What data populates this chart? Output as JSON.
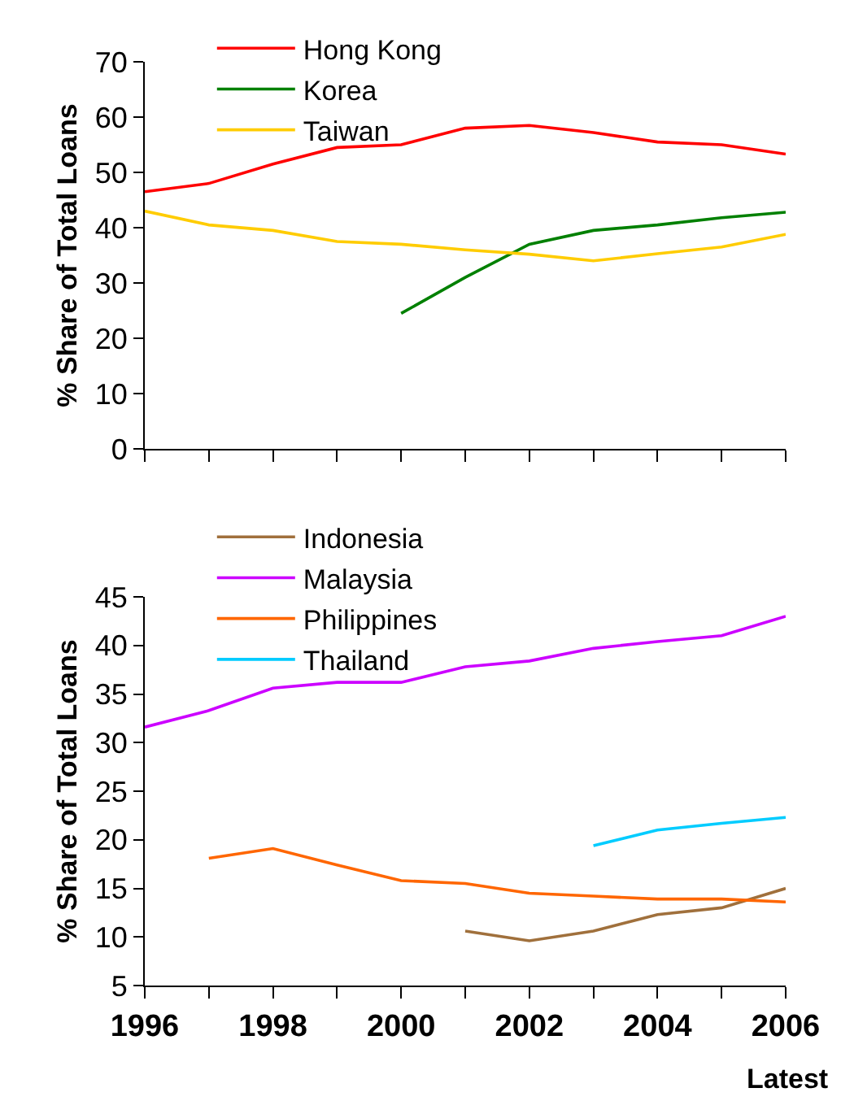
{
  "chart_data": [
    {
      "type": "line",
      "ylabel": "% Share of Total Loans",
      "x": [
        1996,
        1997,
        1998,
        1999,
        2000,
        2001,
        2002,
        2003,
        2004,
        2005,
        2006
      ],
      "series": [
        {
          "name": "Hong Kong",
          "color": "#ff0000",
          "values": [
            46.5,
            48,
            51.5,
            54.5,
            55,
            58,
            58.5,
            57.2,
            55.5,
            55,
            53.3
          ]
        },
        {
          "name": "Korea",
          "color": "#008000",
          "values": [
            null,
            null,
            null,
            null,
            24.5,
            31,
            37,
            39.5,
            40.5,
            41.8,
            42.8
          ]
        },
        {
          "name": "Taiwan",
          "color": "#ffcc00",
          "values": [
            43,
            40.5,
            39.5,
            37.5,
            37,
            36,
            35.2,
            34,
            35.3,
            36.5,
            38.8
          ]
        }
      ],
      "xlim": [
        1996,
        2006
      ],
      "xticks": [
        1996,
        {
          "value": 1997,
          "label": null
        },
        1998,
        {
          "value": 1999,
          "label": null
        },
        2000,
        {
          "value": 2001,
          "label": null
        },
        2002,
        {
          "value": 2003,
          "label": null
        },
        2004,
        {
          "value": 2005,
          "label": null
        },
        2006
      ],
      "ylim": [
        0,
        70
      ],
      "yticks": [
        0,
        10,
        20,
        30,
        40,
        50,
        60,
        70
      ],
      "tick_labels": "y",
      "legend": "top",
      "grid": false,
      "marker": "none",
      "line_style": "solid"
    },
    {
      "type": "line",
      "ylabel": "% Share of Total Loans",
      "xlabel": "Latest",
      "x": [
        1996,
        1997,
        1998,
        1999,
        2000,
        2001,
        2002,
        2003,
        2004,
        2005,
        2006
      ],
      "series": [
        {
          "name": "Indonesia",
          "color": "#a0703c",
          "values": [
            null,
            null,
            null,
            null,
            null,
            10.6,
            9.6,
            10.6,
            12.3,
            13,
            15
          ]
        },
        {
          "name": "Malaysia",
          "color": "#cc00ff",
          "values": [
            31.6,
            33.3,
            35.6,
            36.2,
            36.2,
            37.8,
            38.4,
            39.7,
            40.4,
            41,
            43
          ]
        },
        {
          "name": "Philippines",
          "color": "#ff6600",
          "values": [
            null,
            18.1,
            19.1,
            17.4,
            15.8,
            15.5,
            14.5,
            14.2,
            13.9,
            13.9,
            13.6
          ]
        },
        {
          "name": "Thailand",
          "color": "#00ccff",
          "values": [
            null,
            null,
            null,
            null,
            null,
            null,
            null,
            19.4,
            21,
            21.7,
            22.3
          ]
        }
      ],
      "xlim": [
        1996,
        2006
      ],
      "xticks": [
        1996,
        {
          "value": 1997,
          "label": null
        },
        1998,
        {
          "value": 1999,
          "label": null
        },
        2000,
        {
          "value": 2001,
          "label": null
        },
        2002,
        {
          "value": 2003,
          "label": null
        },
        2004,
        {
          "value": 2005,
          "label": null
        },
        2006
      ],
      "ylim": [
        5,
        45
      ],
      "yticks": [
        5,
        10,
        15,
        20,
        25,
        30,
        35,
        40,
        45
      ],
      "legend": "top",
      "grid": false,
      "marker": "none",
      "line_style": "solid"
    }
  ]
}
